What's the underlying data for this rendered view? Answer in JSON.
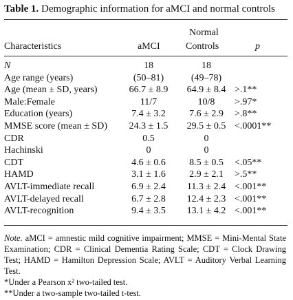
{
  "title": {
    "label": "Table 1.",
    "text": "Demographic information for aMCI and normal controls"
  },
  "headers": {
    "characteristics": "Characteristics",
    "amci": "aMCI",
    "normal_line1": "Normal",
    "normal_line2": "Controls",
    "p": "p"
  },
  "rows": [
    {
      "label": "N",
      "amci": "18",
      "normal": "18",
      "p": ""
    },
    {
      "label": "Age range (years)",
      "amci": "(50–81)",
      "normal": "(49–78)",
      "p": ""
    },
    {
      "label": "Age (mean ± SD, years)",
      "amci": "66.7 ± 8.9",
      "normal": "64.9 ± 8.4",
      "p": ">.1**"
    },
    {
      "label": "Male:Female",
      "amci": "11/7",
      "normal": "10/8",
      "p": ">.97*"
    },
    {
      "label": "Education (years)",
      "amci": "7.4 ± 3.2",
      "normal": "7.6 ± 2.9",
      "p": ">.8**"
    },
    {
      "label": "MMSE score (mean ± SD)",
      "amci": "24.3 ± 1.5",
      "normal": "29.5 ± 0.5",
      "p": "<.0001**"
    },
    {
      "label": "CDR",
      "amci": "0.5",
      "normal": "0",
      "p": ""
    },
    {
      "label": "Hachinski",
      "amci": "0",
      "normal": "0",
      "p": ""
    },
    {
      "label": "CDT",
      "amci": "4.6 ± 0.6",
      "normal": "8.5 ± 0.5",
      "p": "<.05**"
    },
    {
      "label": "HAMD",
      "amci": "3.1 ± 1.6",
      "normal": "2.9 ± 2.1",
      "p": ">.5**"
    },
    {
      "label": "AVLT-immediate recall",
      "amci": "6.9 ± 2.4",
      "normal": "11.3 ± 2.4",
      "p": "<.001**"
    },
    {
      "label": "AVLT-delayed recall",
      "amci": "6.7 ± 2.8",
      "normal": "12.4 ± 2.3",
      "p": "<.001**"
    },
    {
      "label": "AVLT-recognition",
      "amci": "9.4 ± 3.5",
      "normal": "13.1 ± 4.2",
      "p": "<.001**"
    }
  ],
  "notes": {
    "note_label": "Note.",
    "note_text": "aMCI = amnestic mild cognitive impairment; MMSE = Mini-Mental State Examination; CDR = Clinical Dementia Rating Scale; CDT = Clock Drawing Test; HAMD = Hamilton Depression Scale; AVLT = Auditory Verbal Learning Test.",
    "footnote1": "*Under a Pearson x² two-tailed test.",
    "footnote2": "**Under a two-sample two-tailed t-test."
  }
}
